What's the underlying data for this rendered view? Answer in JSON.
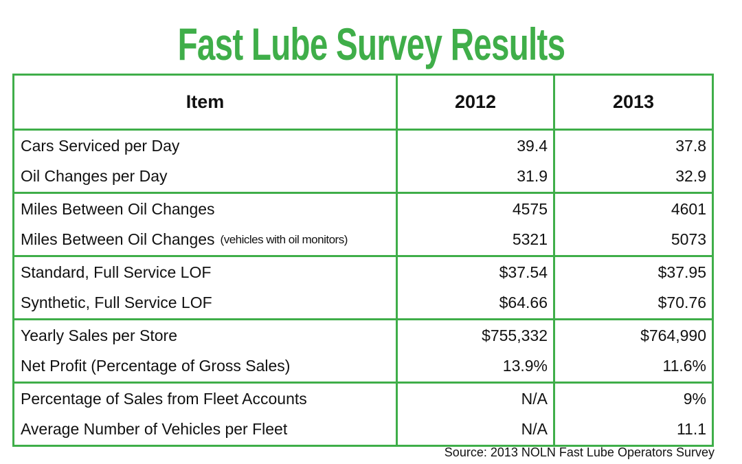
{
  "title": "Fast Lube Survey Results",
  "colors": {
    "accent": "#3fae49"
  },
  "headers": [
    "Item",
    "2012",
    "2013"
  ],
  "groups": [
    [
      {
        "item": "Cars Serviced per Day",
        "note": "",
        "y2012": "39.4",
        "y2013": "37.8"
      },
      {
        "item": "Oil Changes per Day",
        "note": "",
        "y2012": "31.9",
        "y2013": "32.9"
      }
    ],
    [
      {
        "item": "Miles Between Oil Changes",
        "note": "",
        "y2012": "4575",
        "y2013": "4601"
      },
      {
        "item": "Miles Between Oil Changes",
        "note": "(vehicles with oil monitors)",
        "y2012": "5321",
        "y2013": "5073"
      }
    ],
    [
      {
        "item": "Standard, Full Service LOF",
        "note": "",
        "y2012": "$37.54",
        "y2013": "$37.95"
      },
      {
        "item": "Synthetic, Full Service LOF",
        "note": "",
        "y2012": "$64.66",
        "y2013": "$70.76"
      }
    ],
    [
      {
        "item": "Yearly Sales per Store",
        "note": "",
        "y2012": "$755,332",
        "y2013": "$764,990"
      },
      {
        "item": "Net Profit (Percentage of Gross Sales)",
        "note": "",
        "y2012": "13.9%",
        "y2013": "11.6%"
      }
    ],
    [
      {
        "item": "Percentage of Sales from Fleet Accounts",
        "note": "",
        "y2012": "N/A",
        "y2013": "9%"
      },
      {
        "item": "Average Number of Vehicles per Fleet",
        "note": "",
        "y2012": "N/A",
        "y2013": "11.1"
      }
    ]
  ],
  "source": "Source: 2013 NOLN Fast Lube Operators Survey"
}
